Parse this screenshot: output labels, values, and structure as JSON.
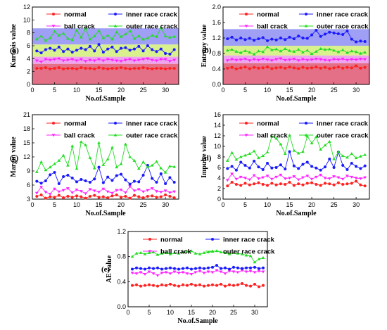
{
  "figure_title": "",
  "legend": {
    "normal": "normal",
    "inner": "inner race crack",
    "ball": "ball crack",
    "outer": "outer race crack"
  },
  "colors": {
    "normal": "#ff2020",
    "inner": "#1a1aff",
    "ball": "#ff22ff",
    "outer": "#22dd22",
    "band_normal": "#e37086",
    "band_ball": "#efa4ef",
    "band_outer": "#d9f08e",
    "band_inner": "#9f9ff5"
  },
  "chart_data": [
    {
      "type": "line",
      "panel_label": "(a)",
      "ylabel": "Kurtosis value",
      "xlabel": "No.of.Sample",
      "xlim": [
        0,
        33
      ],
      "ylim": [
        0,
        12
      ],
      "xticks": [
        0,
        5,
        10,
        15,
        20,
        25,
        30
      ],
      "yticks": [
        0,
        2,
        4,
        6,
        8,
        10,
        12
      ],
      "x": [
        1,
        2,
        3,
        4,
        5,
        6,
        7,
        8,
        9,
        10,
        11,
        12,
        13,
        14,
        15,
        16,
        17,
        18,
        19,
        20,
        21,
        22,
        23,
        24,
        25,
        26,
        27,
        28,
        29,
        30,
        31,
        32
      ],
      "bands": [
        {
          "from": 0,
          "to": 3.2,
          "color": "band_normal"
        },
        {
          "from": 3.2,
          "to": 4.3,
          "color": "band_ball"
        },
        {
          "from": 4.3,
          "to": 6.2,
          "color": "band_outer"
        },
        {
          "from": 6.2,
          "to": 8.7,
          "color": "band_inner"
        }
      ],
      "series": [
        {
          "name": "normal",
          "key": "normal",
          "values": [
            2.5,
            2.5,
            2.6,
            2.4,
            2.5,
            2.6,
            2.4,
            2.5,
            2.5,
            2.4,
            2.6,
            2.5,
            2.5,
            2.4,
            2.6,
            2.5,
            2.4,
            2.5,
            2.5,
            2.6,
            2.5,
            2.4,
            2.5,
            2.5,
            2.6,
            2.5,
            2.4,
            2.5,
            2.5,
            2.4,
            2.5,
            2.5
          ]
        },
        {
          "name": "ball crack",
          "key": "ball",
          "values": [
            3.7,
            3.5,
            3.9,
            3.8,
            3.9,
            4.0,
            3.7,
            3.8,
            3.9,
            3.7,
            3.9,
            3.6,
            3.8,
            3.7,
            3.9,
            3.7,
            3.9,
            3.8,
            3.7,
            3.6,
            3.8,
            3.9,
            3.7,
            3.8,
            3.9,
            4.0,
            3.8,
            3.7,
            3.9,
            3.9,
            3.6,
            3.8
          ]
        },
        {
          "name": "inner race crack",
          "key": "inner",
          "values": [
            5.2,
            4.9,
            5.4,
            5.6,
            5.3,
            5.8,
            5.1,
            5.5,
            5.0,
            5.3,
            5.6,
            5.4,
            5.9,
            5.2,
            6.2,
            5.0,
            5.5,
            5.8,
            5.1,
            5.6,
            5.7,
            5.3,
            5.5,
            5.9,
            5.2,
            6.0,
            5.4,
            5.1,
            5.5,
            4.8,
            4.7,
            5.4
          ]
        },
        {
          "name": "outer race crack",
          "key": "outer",
          "values": [
            7.0,
            7.5,
            6.8,
            7.2,
            8.2,
            7.6,
            7.9,
            7.1,
            6.9,
            8.4,
            7.3,
            8.7,
            7.0,
            7.5,
            8.3,
            7.2,
            7.6,
            7.0,
            8.1,
            7.4,
            7.8,
            8.3,
            7.1,
            7.5,
            7.0,
            7.2,
            7.6,
            7.4,
            8.8,
            7.5,
            7.3,
            7.4
          ]
        }
      ]
    },
    {
      "type": "line",
      "panel_label": "(b)",
      "ylabel": "Entropy value",
      "xlabel": "No.of.Sample",
      "xlim": [
        0,
        33
      ],
      "ylim": [
        0.0,
        2.0
      ],
      "xticks": [
        0,
        5,
        10,
        15,
        20,
        25,
        30
      ],
      "yticks": [
        0.0,
        0.4,
        0.8,
        1.2,
        1.6,
        2.0
      ],
      "x": [
        1,
        2,
        3,
        4,
        5,
        6,
        7,
        8,
        9,
        10,
        11,
        12,
        13,
        14,
        15,
        16,
        17,
        18,
        19,
        20,
        21,
        22,
        23,
        24,
        25,
        26,
        27,
        28,
        29,
        30,
        31,
        32
      ],
      "bands": [
        {
          "from": 0.0,
          "to": 0.55,
          "color": "band_normal"
        },
        {
          "from": 0.55,
          "to": 0.75,
          "color": "band_ball"
        },
        {
          "from": 0.75,
          "to": 1.0,
          "color": "band_outer"
        },
        {
          "from": 1.0,
          "to": 1.43,
          "color": "band_inner"
        }
      ],
      "series": [
        {
          "name": "normal",
          "key": "normal",
          "values": [
            0.42,
            0.44,
            0.4,
            0.43,
            0.45,
            0.41,
            0.44,
            0.42,
            0.43,
            0.45,
            0.41,
            0.43,
            0.44,
            0.42,
            0.45,
            0.43,
            0.41,
            0.44,
            0.42,
            0.43,
            0.45,
            0.42,
            0.44,
            0.41,
            0.43,
            0.45,
            0.42,
            0.44,
            0.43,
            0.48,
            0.42,
            0.44
          ]
        },
        {
          "name": "ball crack",
          "key": "ball",
          "values": [
            0.62,
            0.65,
            0.63,
            0.64,
            0.66,
            0.62,
            0.65,
            0.63,
            0.66,
            0.64,
            0.62,
            0.65,
            0.67,
            0.63,
            0.64,
            0.66,
            0.62,
            0.65,
            0.63,
            0.64,
            0.66,
            0.65,
            0.63,
            0.62,
            0.65,
            0.64,
            0.66,
            0.63,
            0.65,
            0.64,
            0.66,
            0.65
          ]
        },
        {
          "name": "inner race crack",
          "key": "inner",
          "values": [
            1.18,
            1.22,
            1.15,
            1.2,
            1.16,
            1.19,
            1.14,
            1.18,
            1.21,
            1.13,
            1.17,
            1.15,
            1.2,
            1.16,
            1.22,
            1.18,
            1.25,
            1.2,
            1.19,
            1.28,
            1.4,
            1.24,
            1.3,
            1.35,
            1.33,
            1.31,
            1.29,
            1.38,
            1.17,
            1.1,
            1.12,
            1.11
          ]
        },
        {
          "name": "outer race crack",
          "key": "outer",
          "values": [
            0.88,
            0.9,
            0.85,
            0.82,
            0.87,
            0.83,
            0.78,
            0.86,
            0.84,
            0.97,
            0.89,
            0.91,
            0.86,
            0.92,
            0.87,
            0.85,
            0.9,
            0.83,
            0.88,
            0.79,
            0.85,
            0.92,
            0.9,
            0.91,
            0.88,
            0.84,
            0.89,
            0.82,
            0.86,
            0.84,
            0.8,
            0.83
          ]
        }
      ]
    },
    {
      "type": "line",
      "panel_label": "(c)",
      "ylabel": "Margin value",
      "xlabel": "No.of.Sample",
      "xlim": [
        0,
        33
      ],
      "ylim": [
        3,
        21
      ],
      "xticks": [
        0,
        5,
        10,
        15,
        20,
        25,
        30
      ],
      "yticks": [
        3,
        6,
        9,
        12,
        15,
        18,
        21
      ],
      "x": [
        1,
        2,
        3,
        4,
        5,
        6,
        7,
        8,
        9,
        10,
        11,
        12,
        13,
        14,
        15,
        16,
        17,
        18,
        19,
        20,
        21,
        22,
        23,
        24,
        25,
        26,
        27,
        28,
        29,
        30,
        31,
        32
      ],
      "bands": [],
      "series": [
        {
          "name": "normal",
          "key": "normal",
          "values": [
            3.6,
            3.9,
            3.2,
            3.5,
            3.4,
            3.8,
            3.3,
            3.6,
            3.4,
            3.7,
            3.5,
            3.2,
            3.6,
            3.8,
            3.4,
            3.5,
            3.3,
            3.7,
            3.9,
            3.4,
            3.6,
            3.2,
            3.8,
            3.5,
            3.3,
            3.6,
            3.7,
            3.4,
            3.5,
            3.9,
            3.6,
            3.3
          ]
        },
        {
          "name": "ball crack",
          "key": "ball",
          "values": [
            4.3,
            5.6,
            4.5,
            4.1,
            5.2,
            4.6,
            4.9,
            5.3,
            4.4,
            5.0,
            4.7,
            4.2,
            5.1,
            4.8,
            4.5,
            5.2,
            4.6,
            4.3,
            4.9,
            5.0,
            4.4,
            5.7,
            4.8,
            5.1,
            4.6,
            4.9,
            5.3,
            4.7,
            4.5,
            4.8,
            4.4,
            4.6
          ]
        },
        {
          "name": "inner race crack",
          "key": "inner",
          "values": [
            6.8,
            6.4,
            6.9,
            8.2,
            8.7,
            6.3,
            7.8,
            8.1,
            7.5,
            6.7,
            7.2,
            6.9,
            6.6,
            7.3,
            9.8,
            6.5,
            7.7,
            7.0,
            8.0,
            8.3,
            7.1,
            6.2,
            6.8,
            6.7,
            8.1,
            10.2,
            7.4,
            6.6,
            8.4,
            6.3,
            7.6,
            6.6
          ]
        },
        {
          "name": "outer race crack",
          "key": "outer",
          "values": [
            8.8,
            10.9,
            9.2,
            9.8,
            10.5,
            11.2,
            12.3,
            10.2,
            14.3,
            9.5,
            15.2,
            14.5,
            11.8,
            9.6,
            15.0,
            10.3,
            11.5,
            14.0,
            9.8,
            10.5,
            14.7,
            12.0,
            11.2,
            9.5,
            10.9,
            9.8,
            10.2,
            11.0,
            9.6,
            8.7,
            10.0,
            9.9
          ]
        }
      ]
    },
    {
      "type": "line",
      "panel_label": "(d)",
      "ylabel": "Impulse value",
      "xlabel": "No.of.Sample",
      "xlim": [
        0,
        33
      ],
      "ylim": [
        0,
        16
      ],
      "xticks": [
        0,
        5,
        10,
        15,
        20,
        25,
        30
      ],
      "yticks": [
        0,
        2,
        4,
        6,
        8,
        10,
        12,
        14,
        16
      ],
      "x": [
        1,
        2,
        3,
        4,
        5,
        6,
        7,
        8,
        9,
        10,
        11,
        12,
        13,
        14,
        15,
        16,
        17,
        18,
        19,
        20,
        21,
        22,
        23,
        24,
        25,
        26,
        27,
        28,
        29,
        30,
        31,
        32
      ],
      "bands": [],
      "series": [
        {
          "name": "normal",
          "key": "normal",
          "values": [
            2.5,
            3.2,
            2.8,
            2.6,
            3.0,
            2.7,
            2.9,
            3.1,
            2.8,
            2.6,
            3.0,
            2.7,
            2.9,
            2.8,
            3.2,
            2.6,
            2.9,
            2.7,
            3.0,
            3.1,
            2.8,
            2.6,
            3.0,
            2.9,
            2.7,
            3.1,
            2.8,
            2.9,
            3.0,
            3.4,
            2.7,
            2.5
          ]
        },
        {
          "name": "ball crack",
          "key": "ball",
          "values": [
            3.6,
            4.8,
            3.8,
            4.2,
            4.0,
            3.7,
            4.5,
            3.9,
            4.1,
            4.4,
            3.8,
            4.2,
            4.6,
            3.9,
            4.0,
            4.3,
            3.7,
            4.1,
            4.4,
            3.8,
            4.2,
            4.6,
            4.0,
            3.9,
            4.3,
            4.1,
            3.8,
            4.4,
            4.2,
            4.0,
            3.9,
            4.1
          ]
        },
        {
          "name": "inner race crack",
          "key": "inner",
          "values": [
            5.8,
            6.2,
            5.5,
            7.0,
            6.4,
            5.9,
            7.2,
            6.1,
            5.6,
            6.8,
            5.9,
            6.0,
            6.5,
            5.7,
            9.0,
            6.3,
            5.8,
            6.6,
            7.0,
            6.2,
            5.9,
            5.5,
            6.1,
            7.6,
            6.0,
            8.9,
            6.4,
            5.6,
            6.8,
            6.2,
            5.8,
            6.3
          ]
        },
        {
          "name": "outer race crack",
          "key": "outer",
          "values": [
            7.3,
            8.8,
            7.5,
            8.0,
            8.3,
            8.6,
            9.1,
            7.8,
            8.2,
            8.9,
            11.9,
            11.5,
            10.4,
            8.6,
            12.1,
            9.2,
            8.7,
            9.0,
            11.9,
            10.6,
            11.8,
            9.4,
            10.2,
            10.9,
            7.6,
            8.9,
            8.2,
            7.9,
            8.6,
            7.8,
            8.1,
            8.4
          ]
        }
      ]
    },
    {
      "type": "line",
      "panel_label": "(e)",
      "ylabel": "AE value",
      "xlabel": "No.of.Sample",
      "xlim": [
        0,
        33
      ],
      "ylim": [
        0.0,
        1.2
      ],
      "xticks": [
        0,
        5,
        10,
        15,
        20,
        25,
        30
      ],
      "yticks": [
        0.0,
        0.4,
        0.8,
        1.2
      ],
      "x": [
        1,
        2,
        3,
        4,
        5,
        6,
        7,
        8,
        9,
        10,
        11,
        12,
        13,
        14,
        15,
        16,
        17,
        18,
        19,
        20,
        21,
        22,
        23,
        24,
        25,
        26,
        27,
        28,
        29,
        30,
        31,
        32
      ],
      "bands": [],
      "series": [
        {
          "name": "normal",
          "key": "normal",
          "values": [
            0.34,
            0.35,
            0.33,
            0.34,
            0.35,
            0.34,
            0.33,
            0.35,
            0.34,
            0.36,
            0.34,
            0.33,
            0.35,
            0.34,
            0.36,
            0.34,
            0.35,
            0.33,
            0.34,
            0.35,
            0.34,
            0.36,
            0.33,
            0.35,
            0.34,
            0.35,
            0.37,
            0.34,
            0.33,
            0.36,
            0.32,
            0.34
          ]
        },
        {
          "name": "ball crack",
          "key": "ball",
          "values": [
            0.54,
            0.53,
            0.55,
            0.52,
            0.56,
            0.53,
            0.5,
            0.54,
            0.55,
            0.53,
            0.56,
            0.54,
            0.55,
            0.53,
            0.52,
            0.55,
            0.57,
            0.54,
            0.56,
            0.55,
            0.58,
            0.56,
            0.53,
            0.57,
            0.56,
            0.55,
            0.58,
            0.56,
            0.57,
            0.55,
            0.57,
            0.56
          ]
        },
        {
          "name": "inner race crack",
          "key": "inner",
          "values": [
            0.6,
            0.62,
            0.61,
            0.6,
            0.62,
            0.61,
            0.62,
            0.6,
            0.61,
            0.62,
            0.61,
            0.6,
            0.61,
            0.62,
            0.6,
            0.61,
            0.62,
            0.61,
            0.62,
            0.63,
            0.66,
            0.61,
            0.62,
            0.6,
            0.63,
            0.62,
            0.61,
            0.62,
            0.62,
            0.63,
            0.61,
            0.62
          ]
        },
        {
          "name": "outer race crack",
          "key": "outer",
          "values": [
            0.8,
            0.85,
            0.86,
            0.84,
            0.86,
            0.87,
            0.83,
            0.85,
            0.86,
            0.84,
            0.86,
            0.85,
            0.87,
            0.88,
            0.89,
            0.85,
            0.84,
            0.86,
            0.87,
            0.88,
            0.89,
            0.87,
            0.86,
            0.84,
            0.86,
            0.85,
            0.84,
            0.82,
            0.81,
            0.71,
            0.76,
            0.78
          ]
        }
      ]
    }
  ]
}
